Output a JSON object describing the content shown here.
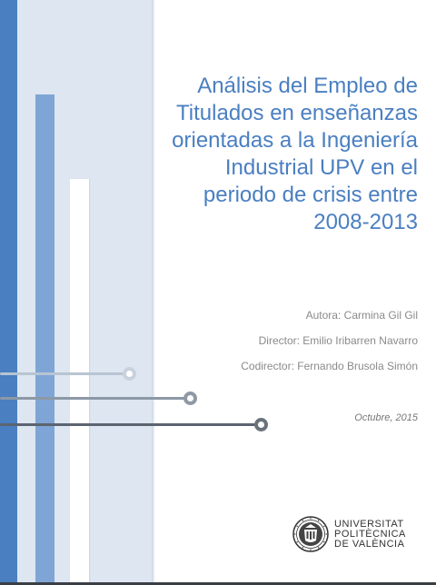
{
  "cover": {
    "title": "Análisis del Empleo de Titulados en enseñanzas orientadas a la Ingeniería Industrial UPV en el periodo de crisis entre 2008-2013",
    "author": "Autora: Carmina Gil Gil",
    "director": "Director: Emilio Iribarren Navarro",
    "codirector": "Codirector: Fernando Brusola Simón",
    "date": "Octubre, 2015"
  },
  "logo": {
    "line1": "UNIVERSITAT",
    "line2": "POLITÈCNICA",
    "line3": "DE VALÈNCIA",
    "icon": "university-seal-icon"
  },
  "colors": {
    "accent": "#4a7fc1",
    "panel": "#dde6f1",
    "text_gray": "#8a8a8a"
  }
}
